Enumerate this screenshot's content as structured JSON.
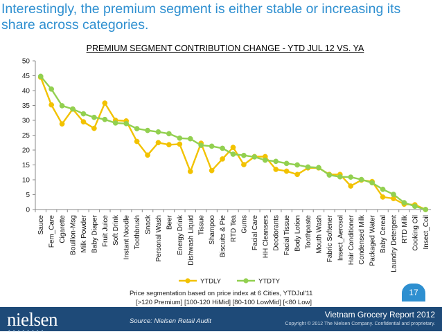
{
  "headline": "Interestingly, the premium segment is either stable or increasing its share across categories.",
  "note_lines": [
    "Price segmentation based on price index at 6 Cities, YTDJul'11",
    "[>120 Premium] [100-120 HiMid] [80-100 LowMid] [<80 Low]"
  ],
  "footer": {
    "logo": "nielsen",
    "source": "Source:  Nielsen Retail Audit",
    "report": "Vietnam Grocery Report 2012",
    "copyright": "Copyright © 2012 The Nielsen Company. Confidential and proprietary.",
    "page_number": "17"
  },
  "colors": {
    "ytdly": "#f2c200",
    "ytdty": "#92d050",
    "headline": "#2e8fd0",
    "footer": "#1e4a78"
  },
  "chart_data": {
    "type": "line",
    "title": "PREMIUM SEGMENT CONTRIBUTION CHANGE - YTD JUL 12 VS. YA",
    "xlabel": "",
    "ylabel": "",
    "ylim": [
      0,
      50
    ],
    "yticks": [
      0,
      5,
      10,
      15,
      20,
      25,
      30,
      35,
      40,
      45,
      50
    ],
    "grid": false,
    "legend": "bottom",
    "categories": [
      "Sauce",
      "Fem_Care",
      "Cigarette",
      "Bouillon-Msg",
      "Milk Powder",
      "Baby Diaper",
      "Fruit Juice",
      "Soft Drink",
      "Instant Noodle",
      "Toothbrush",
      "Snack",
      "Personal Wash",
      "Beer",
      "Energy Drink",
      "Dishwash Liquid",
      "Tissue",
      "Shampoo",
      "Biscuits & Pie",
      "RTD Tea",
      "Gums",
      "Facial Care",
      "HH Cleansers",
      "Deodorants",
      "Facial Tissue",
      "Body Lotion",
      "Toothpaste",
      "Mouth Wash",
      "Fabric Softener",
      "Insect_Aerosol",
      "Hair Conditioner",
      "Condensed Milk",
      "Packaged Water",
      "Baby Cereal",
      "Laundry Detergent",
      "RTD Milk",
      "Cooking Oil",
      "Insect_Coil"
    ],
    "series": [
      {
        "name": "YTDLY",
        "values": [
          44.5,
          35.2,
          28.8,
          33.8,
          29.5,
          27.3,
          35.8,
          30.0,
          29.8,
          22.9,
          18.3,
          22.5,
          21.8,
          22.0,
          12.8,
          22.3,
          13.1,
          17.0,
          20.9,
          15.1,
          17.8,
          17.8,
          13.5,
          12.9,
          11.8,
          14.0,
          14.0,
          11.8,
          11.8,
          7.9,
          9.9,
          9.4,
          4.2,
          3.7,
          1.8,
          1.6,
          0.0
        ]
      },
      {
        "name": "YTDTY",
        "values": [
          44.8,
          40.5,
          34.9,
          33.8,
          32.2,
          31.0,
          30.3,
          29.1,
          28.9,
          27.2,
          26.6,
          26.1,
          25.5,
          24.0,
          23.8,
          21.6,
          21.3,
          20.6,
          18.6,
          18.2,
          17.7,
          16.6,
          16.2,
          15.5,
          15.0,
          14.3,
          14.1,
          11.6,
          11.0,
          10.9,
          10.1,
          9.0,
          6.8,
          5.1,
          2.3,
          1.1,
          0.0
        ]
      }
    ]
  }
}
